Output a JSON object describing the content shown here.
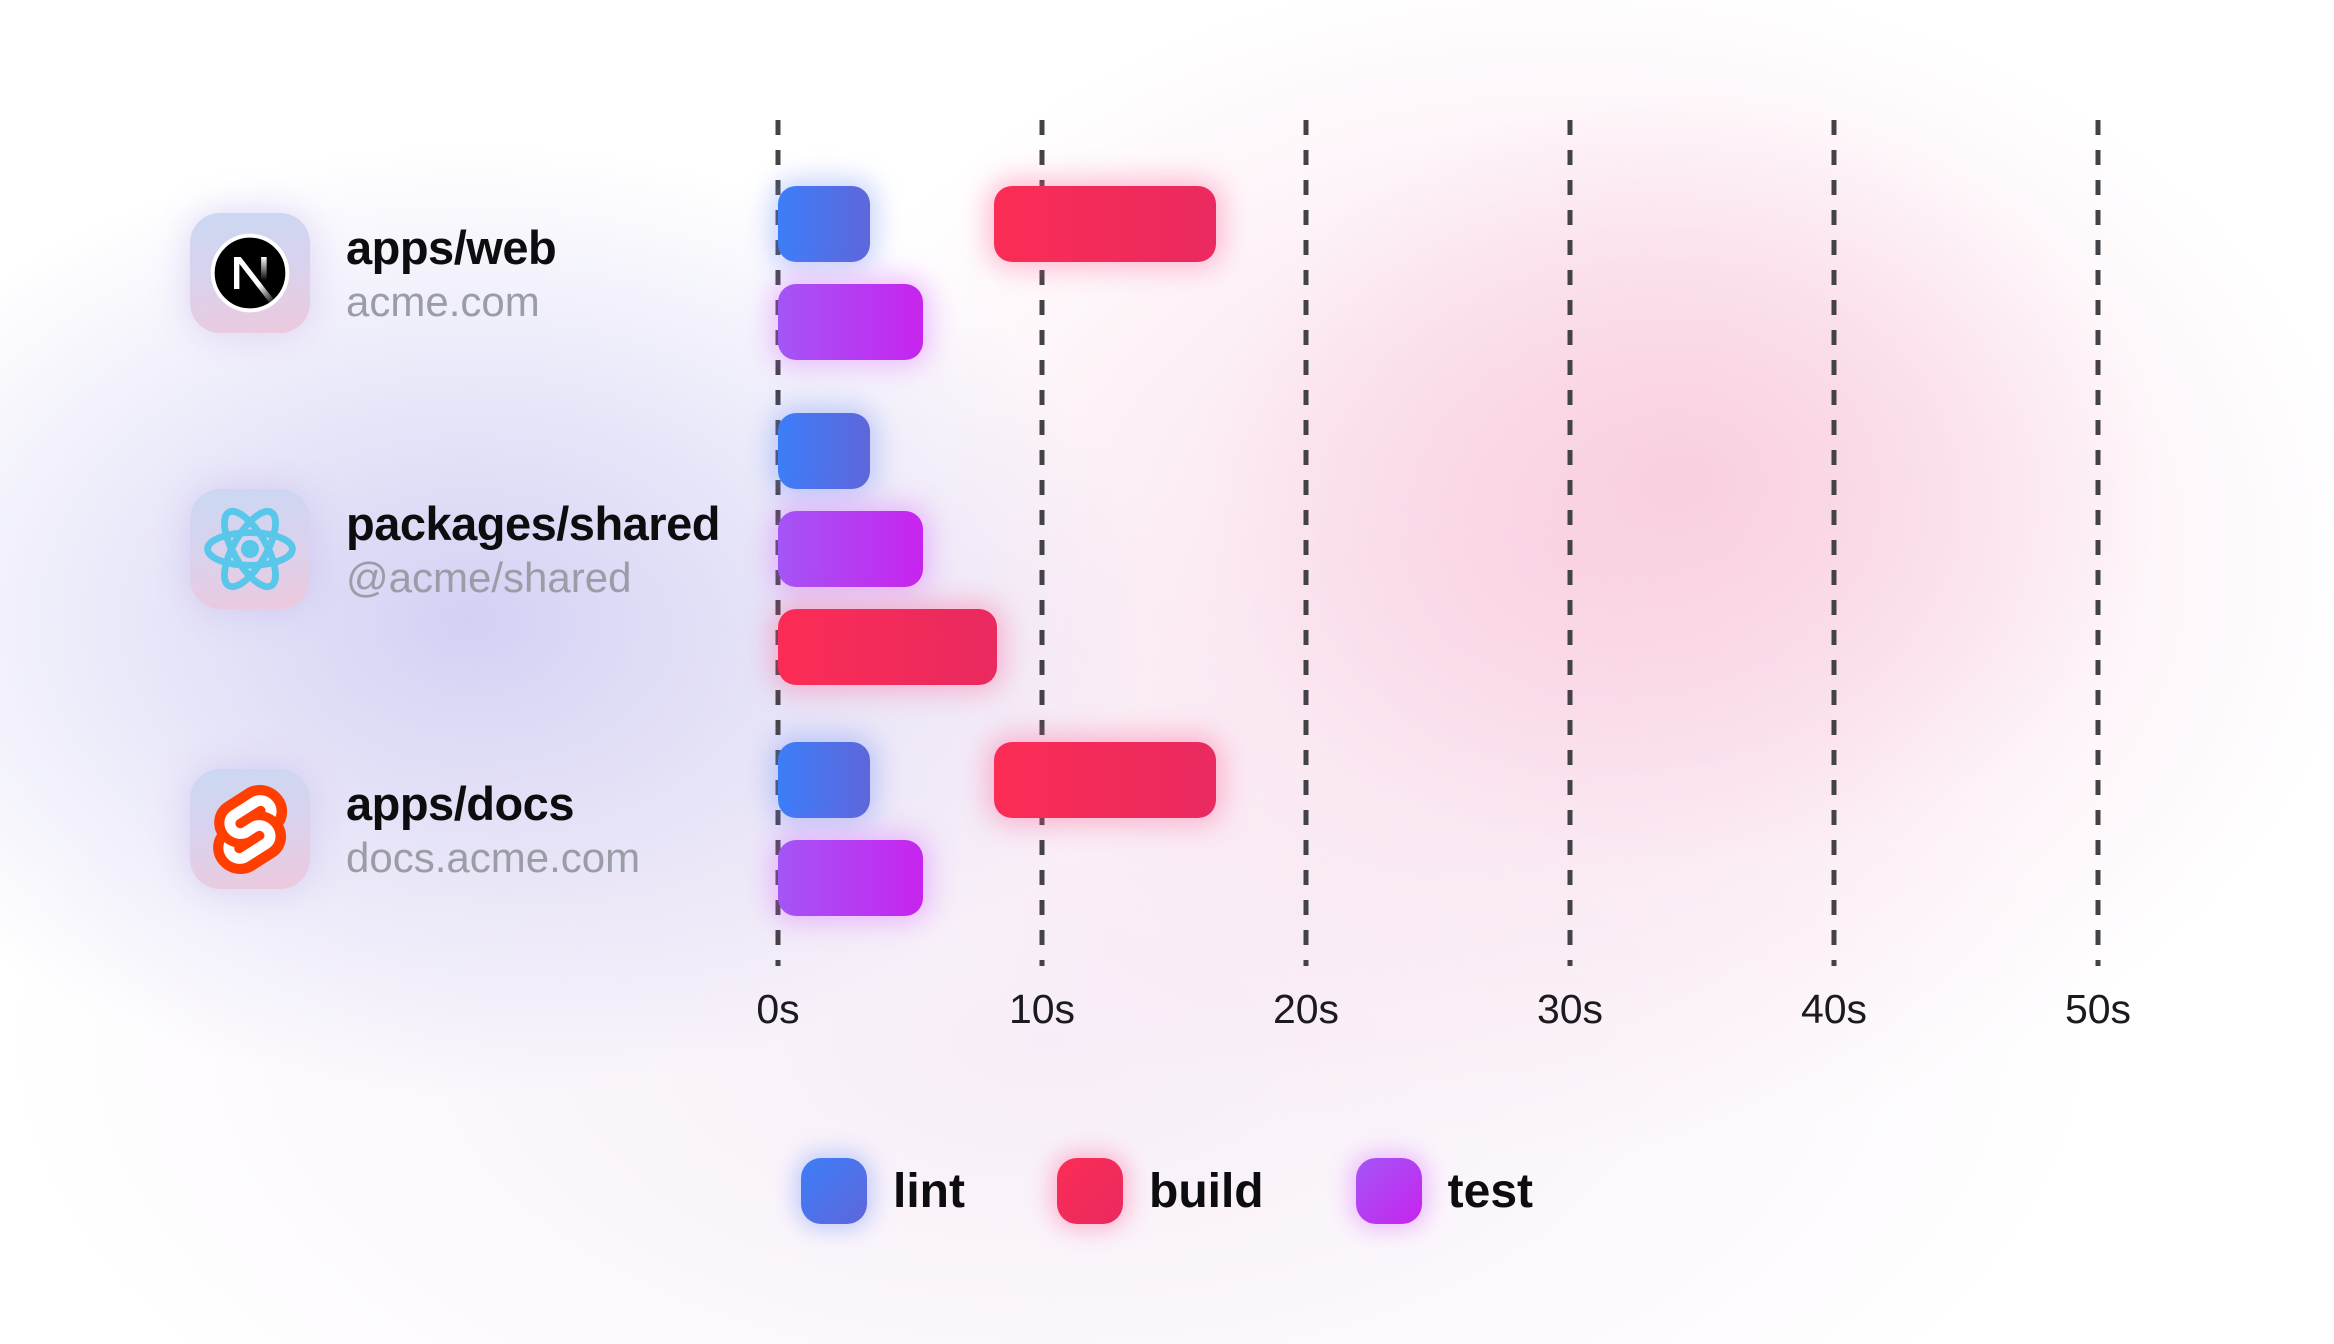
{
  "chart_data": {
    "type": "gantt",
    "description": "Monorepo task timeline (lint / build / test durations per package)",
    "time_axis": {
      "unit": "seconds",
      "ticks": [
        "0s",
        "10s",
        "20s",
        "30s",
        "40s",
        "50s"
      ],
      "tick_values": [
        0,
        10,
        20,
        30,
        40,
        50
      ],
      "range": [
        0,
        50
      ],
      "gridlines": "dashed-vertical"
    },
    "rows": [
      {
        "name": "apps/web",
        "subtitle": "acme.com",
        "icon": "nextjs-icon",
        "tasks": [
          {
            "type": "lint",
            "start": 0,
            "end": 3.5,
            "lane": 0
          },
          {
            "type": "build",
            "start": 8.2,
            "end": 16.6,
            "lane": 0
          },
          {
            "type": "test",
            "start": 0,
            "end": 5.5,
            "lane": 1
          }
        ]
      },
      {
        "name": "packages/shared",
        "subtitle": "@acme/shared",
        "icon": "react-icon",
        "tasks": [
          {
            "type": "lint",
            "start": 0,
            "end": 3.5,
            "lane": 0
          },
          {
            "type": "test",
            "start": 0,
            "end": 5.5,
            "lane": 1
          },
          {
            "type": "build",
            "start": 0,
            "end": 8.3,
            "lane": 2
          }
        ]
      },
      {
        "name": "apps/docs",
        "subtitle": "docs.acme.com",
        "icon": "svelte-icon",
        "tasks": [
          {
            "type": "lint",
            "start": 0,
            "end": 3.5,
            "lane": 0
          },
          {
            "type": "build",
            "start": 8.2,
            "end": 16.6,
            "lane": 0
          },
          {
            "type": "test",
            "start": 0,
            "end": 5.5,
            "lane": 1
          }
        ]
      }
    ],
    "legend": {
      "position": "bottom-center",
      "items": [
        {
          "key": "lint",
          "label": "lint"
        },
        {
          "key": "build",
          "label": "build"
        },
        {
          "key": "test",
          "label": "test"
        }
      ]
    }
  },
  "colors": {
    "lint_gradient": [
      "#3c7ef8",
      "#5f66db"
    ],
    "build_gradient": [
      "#fb2c55",
      "#e92a60"
    ],
    "test_gradient": [
      "#a455f6",
      "#c724ee"
    ],
    "gridline": "#434347",
    "axis_text": "#1b1b1f",
    "title_text": "#0d0d0f",
    "subtitle_text": "#9a9ca6",
    "tile_gradient": [
      "#cad8f2",
      "#edc9dd"
    ],
    "nextjs_black": "#000000",
    "react_cyan": "#58c7ea",
    "svelte_orange": "#ff3e00"
  }
}
